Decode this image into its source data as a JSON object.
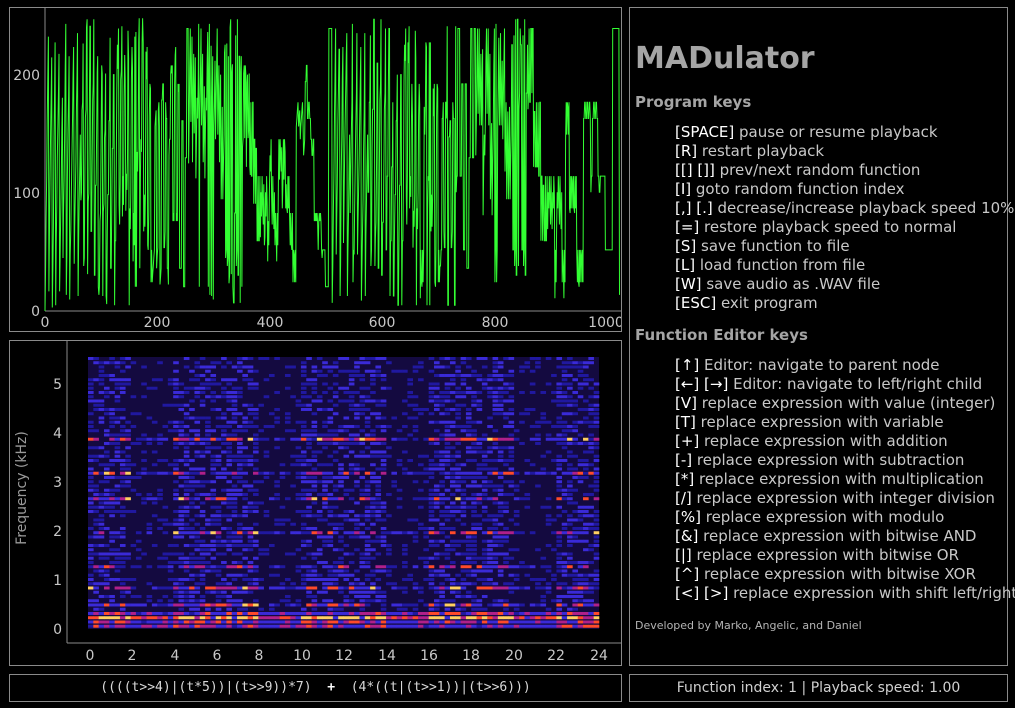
{
  "waveform": {
    "y_ticks": [
      "0",
      "100",
      "200"
    ],
    "x_ticks": [
      "0",
      "200",
      "400",
      "600",
      "800",
      "1000"
    ]
  },
  "spectrogram": {
    "ylabel": "Frequency (kHz)",
    "y_ticks": [
      "0",
      "1",
      "2",
      "3",
      "4",
      "5"
    ],
    "x_ticks": [
      "0",
      "2",
      "4",
      "6",
      "8",
      "10",
      "12",
      "14",
      "16",
      "18",
      "20",
      "22",
      "24"
    ]
  },
  "info": {
    "app_title": "MADulator",
    "program_keys_title": "Program keys",
    "program_keys": [
      {
        "key": "[SPACE]",
        "desc": " pause or resume playback"
      },
      {
        "key": "[R]",
        "desc": " restart playback"
      },
      {
        "key": "[[] []]",
        "desc": " prev/next random function"
      },
      {
        "key": "[I]",
        "desc": " goto random function index"
      },
      {
        "key": "[,] [.]",
        "desc": " decrease/increase playback speed 10%"
      },
      {
        "key": "[=]",
        "desc": " restore playback speed to normal"
      },
      {
        "key": "[S]",
        "desc": " save function to file"
      },
      {
        "key": "[L]",
        "desc": " load function from file"
      },
      {
        "key": "[W]",
        "desc": " save audio as .WAV file"
      },
      {
        "key": "[ESC]",
        "desc": " exit program"
      }
    ],
    "editor_keys_title": "Function Editor keys",
    "editor_keys": [
      {
        "key": "[↑]",
        "desc": " Editor: navigate to parent node"
      },
      {
        "key": "[←] [→]",
        "desc": " Editor: navigate to left/right child"
      },
      {
        "key": "[V]",
        "desc": " replace expression with value (integer)"
      },
      {
        "key": "[T]",
        "desc": " replace expression with variable"
      },
      {
        "key": "[+]",
        "desc": " replace expression with addition"
      },
      {
        "key": "[-]",
        "desc": " replace expression with subtraction"
      },
      {
        "key": "[*]",
        "desc": " replace expression with multiplication"
      },
      {
        "key": "[/]",
        "desc": " replace expression with integer division"
      },
      {
        "key": "[%]",
        "desc": " replace expression with modulo"
      },
      {
        "key": "[&]",
        "desc": " replace expression with bitwise AND"
      },
      {
        "key": "[|]",
        "desc": " replace expression with bitwise OR"
      },
      {
        "key": "[^]",
        "desc": " replace expression with bitwise XOR"
      },
      {
        "key": "[<] [>]",
        "desc": " replace expression with shift left/right"
      }
    ],
    "credits": "Developed by Marko, Angelic, and Daniel"
  },
  "expression": {
    "left": "((((t>>4)|(t*5))|(t>>9))*7)",
    "operator": "+",
    "right": "(4*((t|(t>>1))|(t>>6)))"
  },
  "status": {
    "text": "Function index: 1 | Playback speed: 1.00"
  },
  "colors": {
    "wave": "#33ff33",
    "panel_border": "#8a8a8a",
    "background": "#000000"
  }
}
